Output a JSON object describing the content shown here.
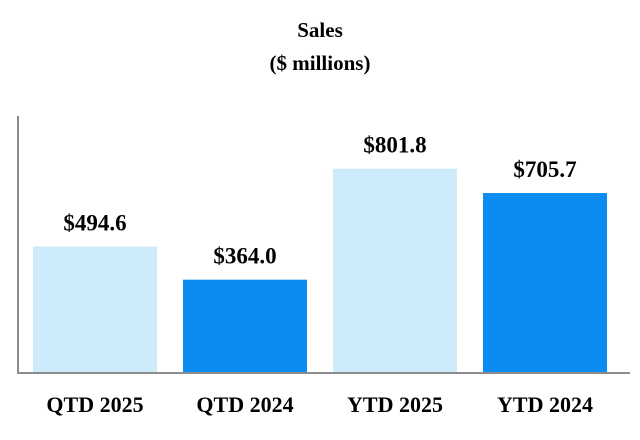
{
  "chart_data": {
    "type": "bar",
    "title": "Sales",
    "subtitle": "($ millions)",
    "xlabel": "",
    "ylabel": "",
    "categories": [
      "QTD 2025",
      "QTD 2024",
      "YTD 2025",
      "YTD 2024"
    ],
    "values": [
      494.6,
      364.0,
      801.8,
      705.7
    ],
    "value_labels": [
      "$494.6",
      "$364.0",
      "$801.8",
      "$705.7"
    ],
    "bar_colors": [
      "#cdebfb",
      "#0a8cf0",
      "#cdebfb",
      "#0a8cf0"
    ],
    "ylim": [
      0,
      1000
    ],
    "grid": false,
    "legend": "none"
  },
  "colors": {
    "axis": "#8c8c8c",
    "text": "#000000"
  }
}
